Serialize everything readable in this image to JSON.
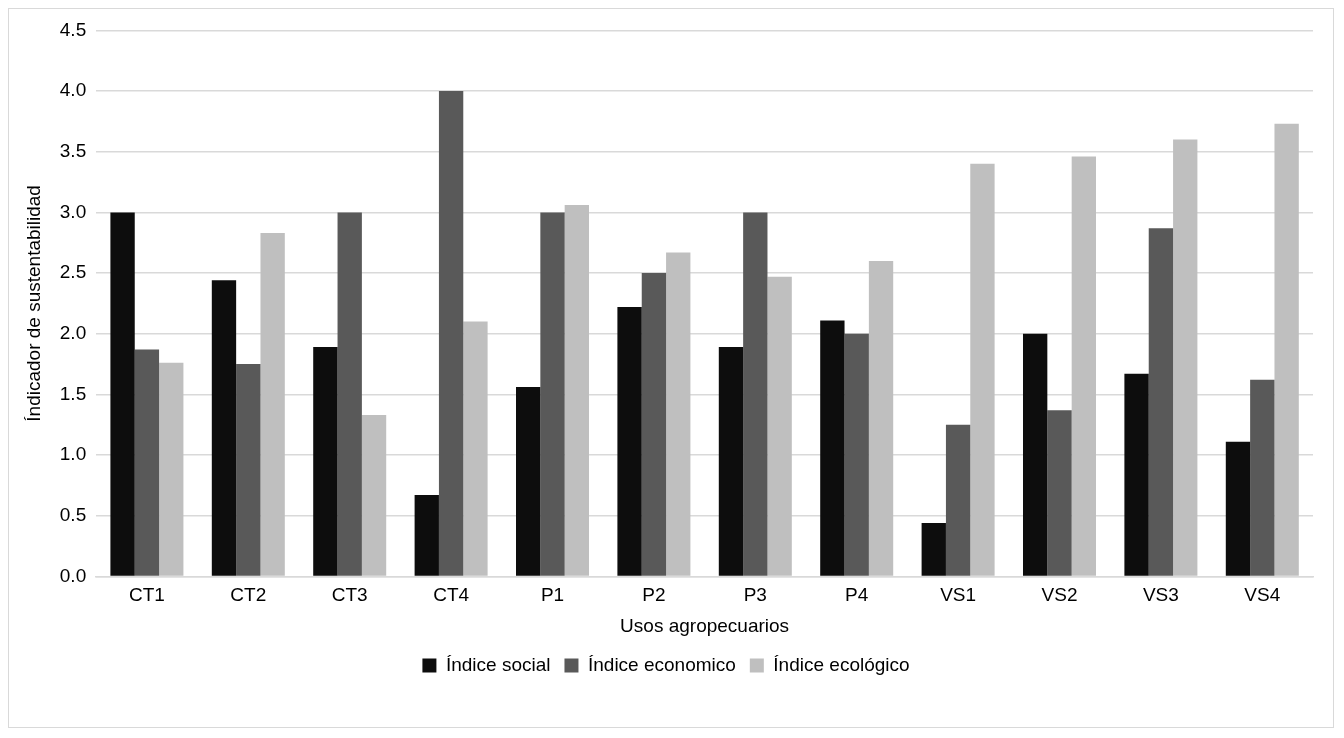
{
  "chart_data": {
    "type": "bar",
    "xlabel": "Usos agropecuarios",
    "ylabel": "Índicador de sustentabilidad",
    "categories": [
      "CT1",
      "CT2",
      "CT3",
      "CT4",
      "P1",
      "P2",
      "P3",
      "P4",
      "VS1",
      "VS2",
      "VS3",
      "VS4"
    ],
    "series": [
      {
        "name": "Índice social",
        "color": "#0d0d0d",
        "values": [
          3.0,
          2.44,
          1.89,
          0.67,
          1.56,
          2.22,
          1.89,
          2.11,
          0.44,
          2.0,
          1.67,
          1.11
        ]
      },
      {
        "name": "Índice economico",
        "color": "#595959",
        "values": [
          1.87,
          1.75,
          3.0,
          4.0,
          3.0,
          2.5,
          3.0,
          2.0,
          1.25,
          1.37,
          2.87,
          1.62
        ]
      },
      {
        "name": "Índice ecológico",
        "color": "#bfbfbf",
        "values": [
          1.76,
          2.83,
          1.33,
          2.1,
          3.06,
          2.67,
          2.47,
          2.6,
          3.4,
          3.46,
          3.6,
          3.73
        ]
      }
    ],
    "ylim": [
      0,
      4.5
    ],
    "yticks": [
      {
        "value": 0,
        "label": "0.0"
      },
      {
        "value": 0.5,
        "label": "0.5"
      },
      {
        "value": 1,
        "label": "1.0"
      },
      {
        "value": 1.5,
        "label": "1.5"
      },
      {
        "value": 2,
        "label": "2.0"
      },
      {
        "value": 2.5,
        "label": "2.5"
      },
      {
        "value": 3,
        "label": "3.0"
      },
      {
        "value": 3.5,
        "label": "3.5"
      },
      {
        "value": 4,
        "label": "4.0"
      },
      {
        "value": 4.5,
        "label": "4.5"
      }
    ],
    "grid": "y",
    "legend": "bottom"
  }
}
